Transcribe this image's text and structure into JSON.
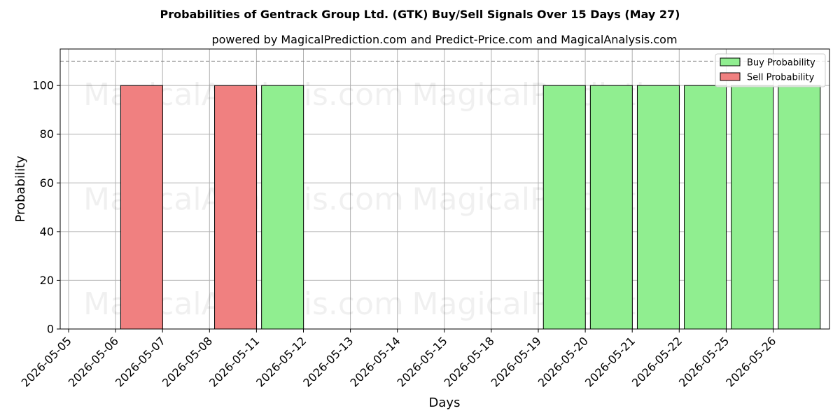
{
  "chart_data": {
    "type": "bar",
    "title": "Probabilities of Gentrack Group Ltd. (GTK) Buy/Sell Signals Over 15 Days (May 27)",
    "subtitle": "powered by MagicalPrediction.com and Predict-Price.com and MagicalAnalysis.com",
    "xlabel": "Days",
    "ylabel": "Probability",
    "ylim": [
      0,
      115
    ],
    "yticks": [
      0,
      20,
      40,
      60,
      80,
      100
    ],
    "reference_line": 110,
    "grid": true,
    "legend_position": "top-right",
    "categories": [
      "2026-05-05",
      "2026-05-06",
      "2026-05-07",
      "2026-05-08",
      "2026-05-11",
      "2026-05-12",
      "2026-05-13",
      "2026-05-14",
      "2026-05-15",
      "2026-05-18",
      "2026-05-19",
      "2026-05-20",
      "2026-05-21",
      "2026-05-22",
      "2026-05-25",
      "2026-05-26"
    ],
    "series": [
      {
        "name": "Buy Probability",
        "color": "#90ee90",
        "values": [
          0,
          0,
          0,
          0,
          100,
          0,
          0,
          0,
          0,
          0,
          100,
          100,
          100,
          100,
          100,
          100
        ]
      },
      {
        "name": "Sell Probability",
        "color": "#f08080",
        "values": [
          0,
          100,
          0,
          100,
          0,
          0,
          0,
          0,
          0,
          0,
          0,
          0,
          0,
          0,
          0,
          0
        ]
      }
    ],
    "watermarks": [
      "MagicalAnalysis.com",
      "MagicalPrediction.com"
    ]
  }
}
